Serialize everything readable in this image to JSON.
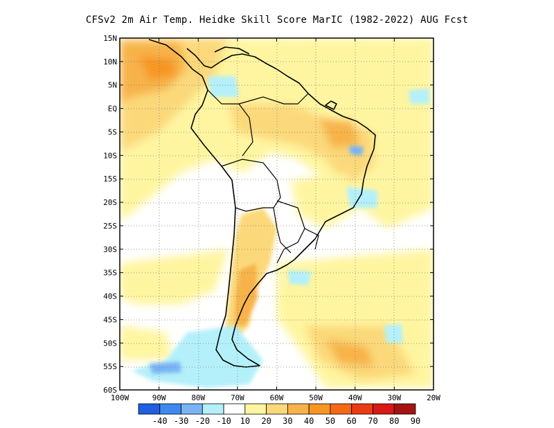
{
  "title": "CFSv2  2m Air Temp. Heidke Skill Score MarIC (1982-2022) AUG Fcst",
  "map": {
    "lat_labels": [
      "15N",
      "10N",
      "5N",
      "EQ",
      "5S",
      "10S",
      "15S",
      "20S",
      "25S",
      "30S",
      "35S",
      "40S",
      "45S",
      "50S",
      "55S",
      "60S"
    ],
    "lon_labels": [
      "100W",
      "90W",
      "80W",
      "70W",
      "60W",
      "50W",
      "40W",
      "30W",
      "20W"
    ],
    "lat_range": [
      -60,
      15
    ],
    "lon_range": [
      -100,
      -20
    ],
    "grid": "dotted"
  },
  "colorbar": {
    "labels": [
      "-40",
      "-30",
      "-20",
      "-10",
      "10",
      "20",
      "30",
      "40",
      "50",
      "60",
      "70",
      "80",
      "90"
    ],
    "colors": [
      "#1f5fe0",
      "#3c8af0",
      "#78b4f5",
      "#b4f0fa",
      "#ffffff",
      "#fff5a0",
      "#fbd97a",
      "#f7b34a",
      "#f79623",
      "#f46914",
      "#ec3a12",
      "#d71816",
      "#a31410"
    ]
  }
}
